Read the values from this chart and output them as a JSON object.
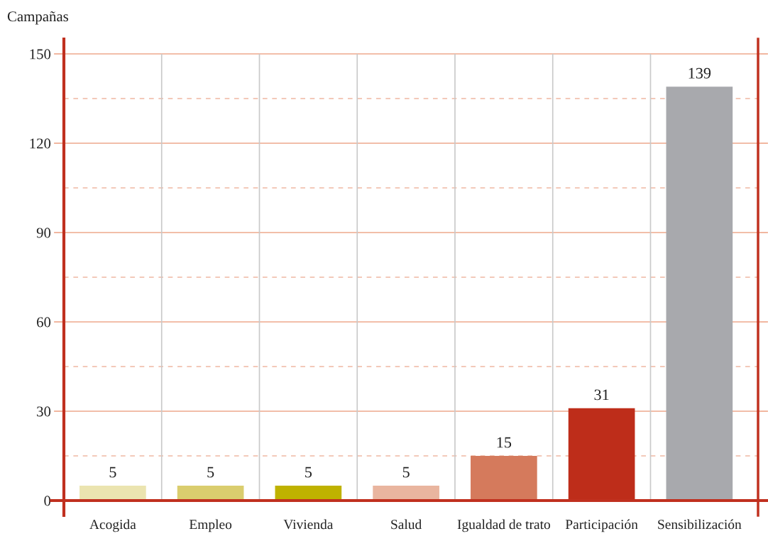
{
  "chart_data": {
    "type": "bar",
    "ylabel": "Campañas",
    "categories": [
      "Acogida",
      "Empleo",
      "Vivienda",
      "Salud",
      "Igualdad de trato",
      "Participación",
      "Sensibilización"
    ],
    "values": [
      5,
      5,
      5,
      5,
      15,
      31,
      139
    ],
    "colors": [
      "#ebe4b0",
      "#dacd6e",
      "#bfb200",
      "#e9b59f",
      "#d57a5c",
      "#be2d1a",
      "#a8a9ad"
    ],
    "ylim": [
      -5,
      155
    ],
    "yticks": [
      0,
      {
        "value": 15,
        "label": null
      },
      30,
      {
        "value": 45,
        "label": null
      },
      60,
      {
        "value": 75,
        "label": null
      },
      90,
      {
        "value": 105,
        "label": null
      },
      120,
      {
        "value": 135,
        "label": null
      },
      150
    ],
    "grid": true,
    "data_labels": true
  }
}
